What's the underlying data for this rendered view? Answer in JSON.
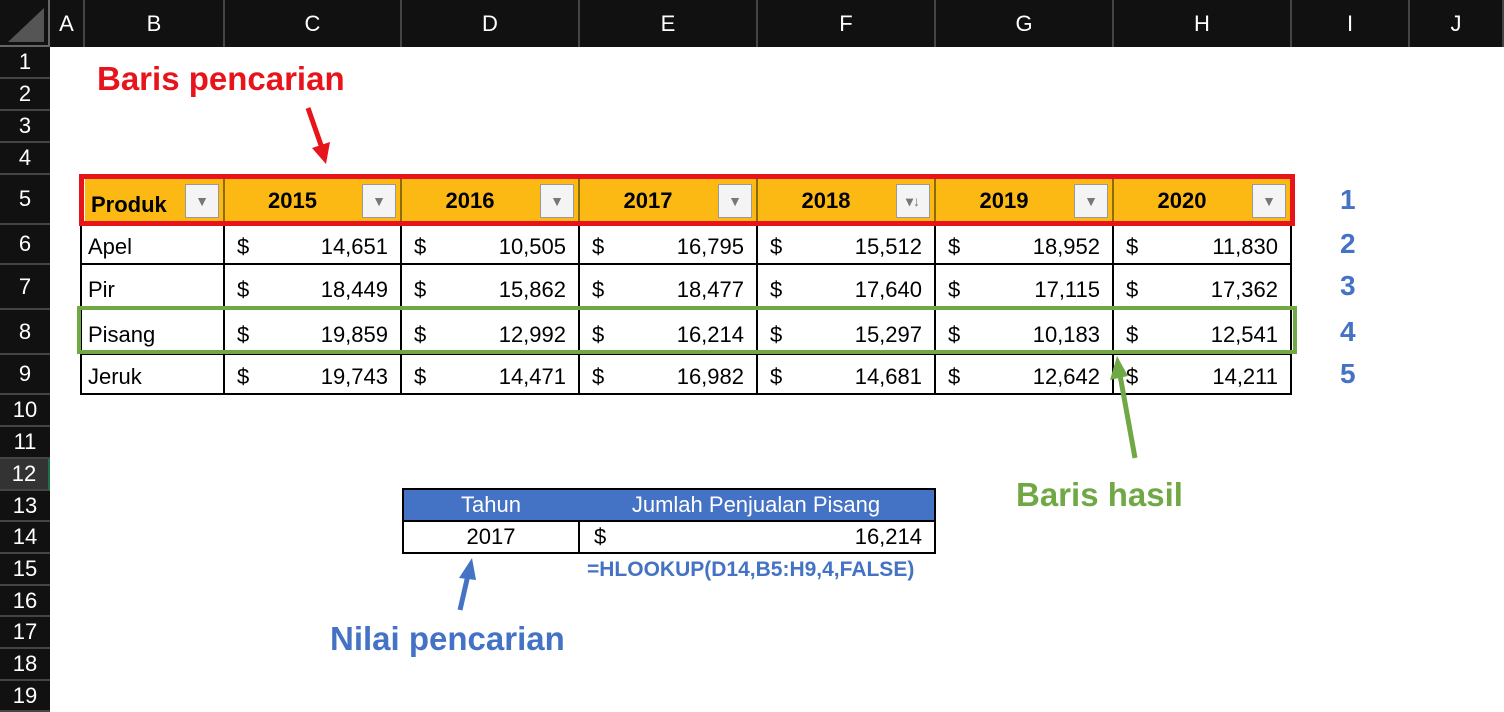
{
  "columns": [
    "A",
    "B",
    "C",
    "D",
    "E",
    "F",
    "G",
    "H",
    "I",
    "J"
  ],
  "rows": [
    "1",
    "2",
    "3",
    "4",
    "5",
    "6",
    "7",
    "8",
    "9",
    "10",
    "11",
    "12",
    "13",
    "14",
    "15",
    "16",
    "17",
    "18",
    "19"
  ],
  "table": {
    "headers": [
      "Produk",
      "2015",
      "2016",
      "2017",
      "2018",
      "2019",
      "2020"
    ],
    "rows": [
      {
        "name": "Apel",
        "values": [
          "14,651",
          "10,505",
          "16,795",
          "15,512",
          "18,952",
          "11,830"
        ]
      },
      {
        "name": "Pir",
        "values": [
          "18,449",
          "15,862",
          "18,477",
          "17,640",
          "17,115",
          "17,362"
        ]
      },
      {
        "name": "Pisang",
        "values": [
          "19,859",
          "12,992",
          "16,214",
          "15,297",
          "10,183",
          "12,541"
        ]
      },
      {
        "name": "Jeruk",
        "values": [
          "19,743",
          "14,471",
          "16,982",
          "14,681",
          "12,642",
          "14,211"
        ]
      }
    ],
    "currency": "$"
  },
  "row_index": [
    "1",
    "2",
    "3",
    "4",
    "5"
  ],
  "lookup": {
    "header_year": "Tahun",
    "header_result": "Jumlah Penjualan Pisang",
    "year": "2017",
    "currency": "$",
    "result": "16,214",
    "formula": "=HLOOKUP(D14,B5:H9,4,FALSE)"
  },
  "annotations": {
    "search_row": "Baris pencarian",
    "result_row": "Baris hasil",
    "lookup_value": "Nilai pencarian"
  },
  "colors": {
    "header_fill": "#fdb913",
    "search_box": "#e8141b",
    "result_box": "#70a845",
    "lookup_header": "#4472c4",
    "annotation_blue": "#4472c4"
  }
}
